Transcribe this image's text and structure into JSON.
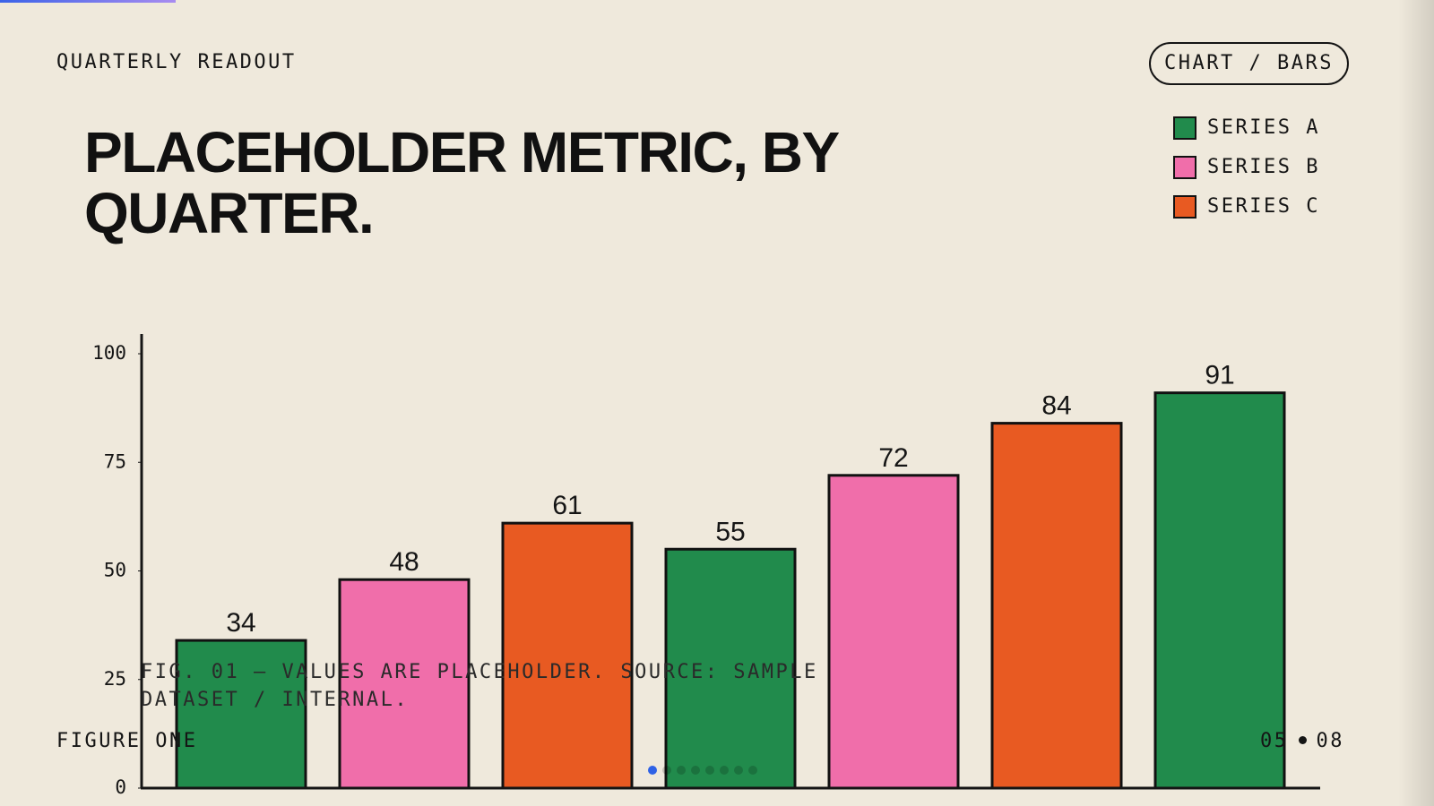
{
  "header": {
    "eyebrow": "QUARTERLY READOUT",
    "tag": "CHART / BARS"
  },
  "chart_data": {
    "type": "bar",
    "title": "PLACEHOLDER METRIC, BY QUARTER.",
    "categories": [
      null,
      null,
      null,
      null,
      null,
      null,
      null
    ],
    "series": [
      {
        "name": "SERIES A",
        "color": "#218b4c",
        "values": [
          34,
          null,
          null,
          55,
          null,
          null,
          91
        ]
      },
      {
        "name": "SERIES B",
        "color": "#f06eaa",
        "values": [
          null,
          48,
          null,
          null,
          72,
          null,
          null
        ]
      },
      {
        "name": "SERIES C",
        "color": "#e85a22",
        "values": [
          null,
          null,
          61,
          null,
          null,
          84,
          null
        ]
      }
    ],
    "ylim": [
      0,
      100
    ],
    "yticks": [
      0,
      25,
      50,
      75,
      100
    ],
    "grid": false,
    "legend": "top-right",
    "caption": "FIG. 01 — VALUES ARE PLACEHOLDER. SOURCE: SAMPLE DATASET / INTERNAL."
  },
  "footer": {
    "label": "FIGURE ONE",
    "page": "05",
    "total": "08"
  }
}
